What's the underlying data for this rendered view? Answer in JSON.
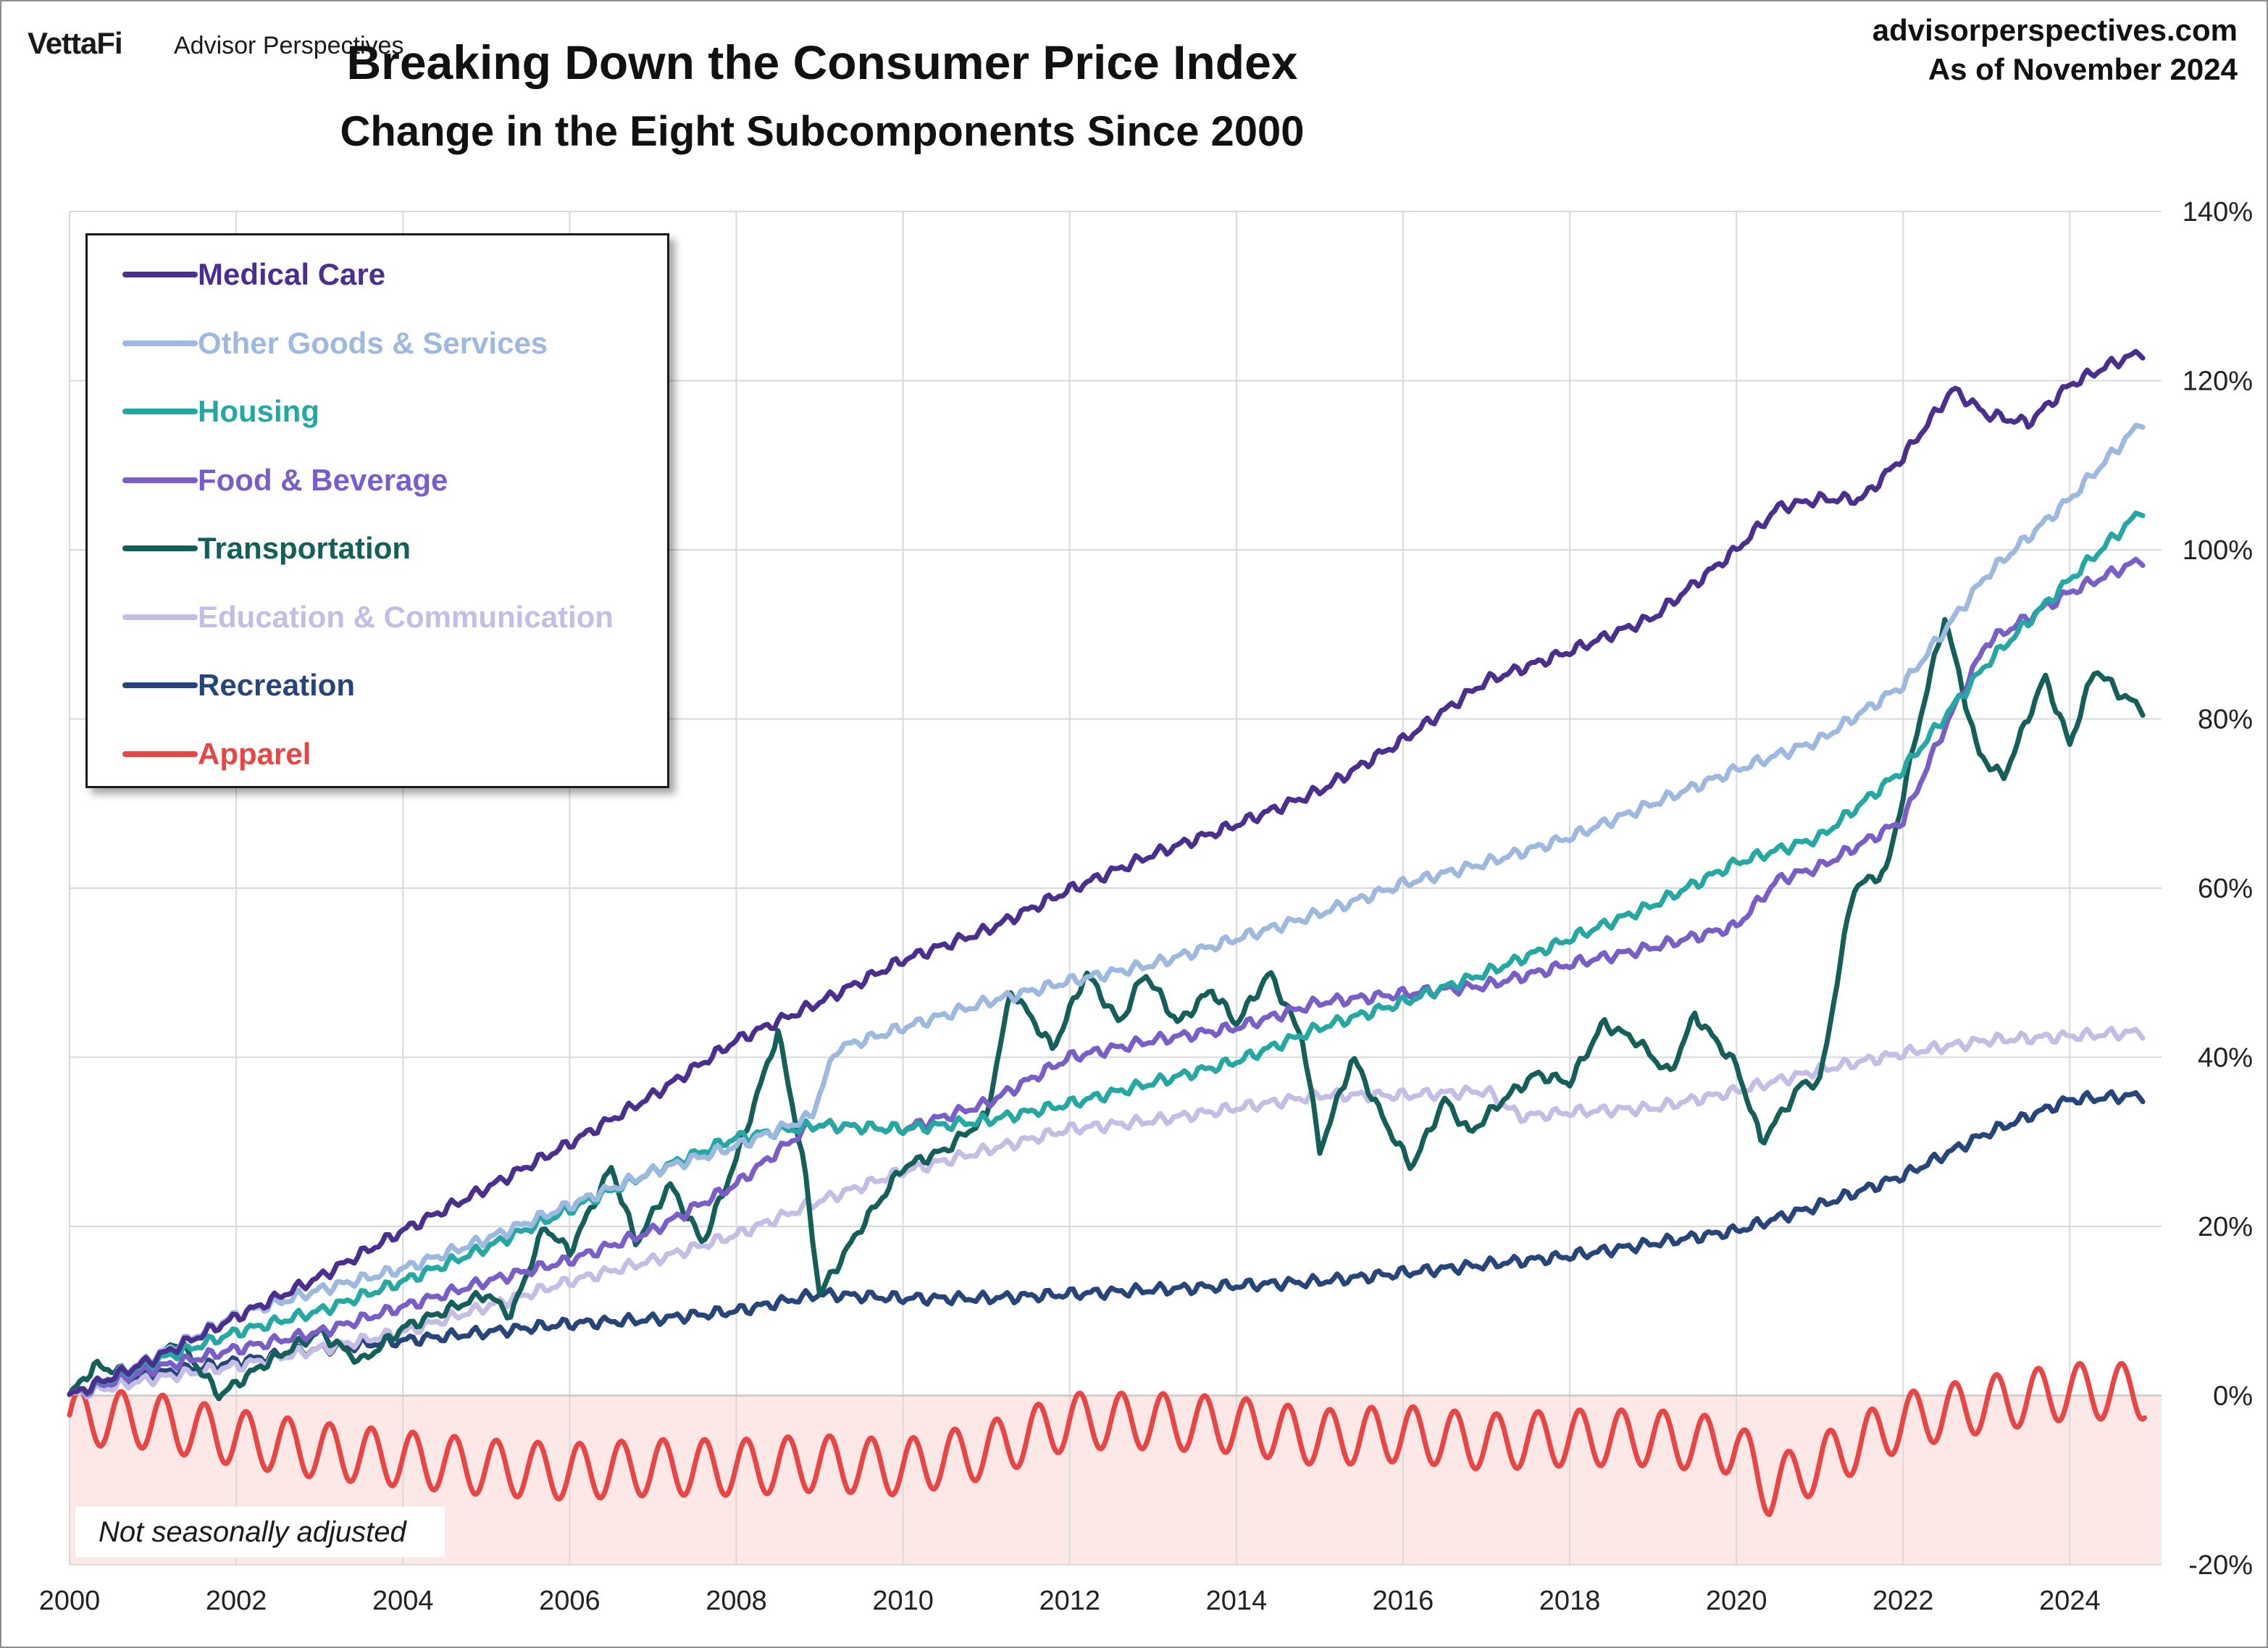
{
  "header": {
    "brand_logo": "VettaFi",
    "brand_name": "Advisor Perspectives",
    "site": "advisorperspectives.com",
    "as_of": "As of November 2024"
  },
  "note": "Not seasonally adjusted",
  "chart_data": {
    "type": "line",
    "title": "Breaking Down the Consumer Price Index",
    "subtitle": "Change in the Eight Subcomponents Since 2000",
    "xlabel": "",
    "ylabel": "",
    "x_ticks": [
      "2000",
      "2002",
      "2004",
      "2006",
      "2008",
      "2010",
      "2012",
      "2014",
      "2016",
      "2018",
      "2020",
      "2022",
      "2024"
    ],
    "y_ticks": [
      "-20%",
      "0%",
      "20%",
      "40%",
      "60%",
      "80%",
      "100%",
      "120%",
      "140%"
    ],
    "xlim": [
      2000,
      2025.1
    ],
    "ylim": [
      -20,
      140
    ],
    "grid": true,
    "y_axis_side": "right",
    "negative_region_shaded": true,
    "negative_region_color": "#fde8e8",
    "legend_position": "top-left",
    "series": [
      {
        "name": "Medical Care",
        "color": "#4b2f8f",
        "points": [
          [
            2000,
            0
          ],
          [
            2001,
            4.3
          ],
          [
            2002,
            9.3
          ],
          [
            2003,
            14.0
          ],
          [
            2004,
            19.5
          ],
          [
            2005,
            24.5
          ],
          [
            2006,
            29.8
          ],
          [
            2007,
            35.5
          ],
          [
            2008,
            42.0
          ],
          [
            2009,
            46.5
          ],
          [
            2010,
            51.5
          ],
          [
            2011,
            55.0
          ],
          [
            2012,
            59.8
          ],
          [
            2013,
            64.0
          ],
          [
            2014,
            67.5
          ],
          [
            2015,
            71.5
          ],
          [
            2016,
            77.5
          ],
          [
            2017,
            84.5
          ],
          [
            2018,
            88.0
          ],
          [
            2019,
            92.0
          ],
          [
            2020,
            100.0
          ],
          [
            2020.5,
            105.0
          ],
          [
            2021,
            106.0
          ],
          [
            2021.5,
            106.0
          ],
          [
            2022,
            111.0
          ],
          [
            2022.6,
            119.0
          ],
          [
            2023,
            116.0
          ],
          [
            2023.5,
            115.0
          ],
          [
            2024,
            119.5
          ],
          [
            2024.5,
            122.0
          ],
          [
            2024.9,
            123.5
          ]
        ]
      },
      {
        "name": "Other Goods & Services",
        "color": "#9db9e0",
        "points": [
          [
            2000,
            0
          ],
          [
            2001,
            4.5
          ],
          [
            2002,
            9.5
          ],
          [
            2003,
            12.5
          ],
          [
            2004,
            15.0
          ],
          [
            2005,
            18.5
          ],
          [
            2006,
            22.5
          ],
          [
            2007,
            26.5
          ],
          [
            2008,
            29.5
          ],
          [
            2008.9,
            33.0
          ],
          [
            2009.2,
            41.0
          ],
          [
            2010,
            43.5
          ],
          [
            2011,
            46.5
          ],
          [
            2012,
            49.0
          ],
          [
            2013,
            51.0
          ],
          [
            2014,
            54.0
          ],
          [
            2015,
            57.0
          ],
          [
            2016,
            60.5
          ],
          [
            2017,
            63.0
          ],
          [
            2018,
            66.0
          ],
          [
            2019,
            70.0
          ],
          [
            2020,
            74.0
          ],
          [
            2021,
            77.5
          ],
          [
            2022,
            84.0
          ],
          [
            2023,
            97.0
          ],
          [
            2024,
            106.0
          ],
          [
            2024.9,
            115.5
          ]
        ]
      },
      {
        "name": "Housing",
        "color": "#25a7a3",
        "points": [
          [
            2000,
            0
          ],
          [
            2001,
            4.0
          ],
          [
            2002,
            7.5
          ],
          [
            2003,
            10.0
          ],
          [
            2004,
            13.5
          ],
          [
            2005,
            17.5
          ],
          [
            2006,
            22.0
          ],
          [
            2007,
            26.5
          ],
          [
            2008,
            30.5
          ],
          [
            2009,
            32.0
          ],
          [
            2010,
            31.5
          ],
          [
            2011,
            32.5
          ],
          [
            2012,
            34.5
          ],
          [
            2013,
            37.0
          ],
          [
            2014,
            39.5
          ],
          [
            2015,
            43.5
          ],
          [
            2016,
            46.5
          ],
          [
            2017,
            50.0
          ],
          [
            2018,
            54.0
          ],
          [
            2019,
            58.0
          ],
          [
            2020,
            63.0
          ],
          [
            2021,
            66.0
          ],
          [
            2022,
            74.0
          ],
          [
            2023,
            86.5
          ],
          [
            2024,
            96.5
          ],
          [
            2024.9,
            105.0
          ]
        ]
      },
      {
        "name": "Food & Beverage",
        "color": "#7a5ec8",
        "points": [
          [
            2000,
            0
          ],
          [
            2001,
            3.2
          ],
          [
            2002,
            5.5
          ],
          [
            2003,
            7.5
          ],
          [
            2004,
            10.5
          ],
          [
            2005,
            13.5
          ],
          [
            2006,
            16.0
          ],
          [
            2007,
            19.5
          ],
          [
            2008,
            25.0
          ],
          [
            2008.9,
            32.0
          ],
          [
            2010,
            31.5
          ],
          [
            2011,
            34.5
          ],
          [
            2012,
            40.0
          ],
          [
            2013,
            42.0
          ],
          [
            2014,
            43.5
          ],
          [
            2015,
            46.5
          ],
          [
            2016,
            47.5
          ],
          [
            2017,
            48.5
          ],
          [
            2018,
            51.0
          ],
          [
            2019,
            53.0
          ],
          [
            2020,
            55.5
          ],
          [
            2020.5,
            61.0
          ],
          [
            2021,
            62.5
          ],
          [
            2022,
            68.0
          ],
          [
            2022.5,
            79.0
          ],
          [
            2023,
            89.0
          ],
          [
            2024,
            95.0
          ],
          [
            2024.9,
            99.0
          ]
        ]
      },
      {
        "name": "Transportation",
        "color": "#145f5a",
        "points": [
          [
            2000,
            0
          ],
          [
            2000.3,
            3.5
          ],
          [
            2000.8,
            2.5
          ],
          [
            2001.3,
            6.5
          ],
          [
            2001.8,
            0
          ],
          [
            2002.3,
            3.5
          ],
          [
            2003,
            7.5
          ],
          [
            2003.5,
            4.0
          ],
          [
            2004,
            8.0
          ],
          [
            2004.5,
            10.0
          ],
          [
            2005,
            12.0
          ],
          [
            2005.3,
            9.5
          ],
          [
            2005.7,
            20.0
          ],
          [
            2006,
            17.0
          ],
          [
            2006.5,
            27.0
          ],
          [
            2006.8,
            18.0
          ],
          [
            2007.2,
            25.0
          ],
          [
            2007.6,
            18.0
          ],
          [
            2008,
            28.0
          ],
          [
            2008.5,
            43.0
          ],
          [
            2008.8,
            28.0
          ],
          [
            2009,
            12.0
          ],
          [
            2009.5,
            20.0
          ],
          [
            2010,
            27.0
          ],
          [
            2010.5,
            29.0
          ],
          [
            2011,
            33.0
          ],
          [
            2011.3,
            48.0
          ],
          [
            2011.8,
            41.0
          ],
          [
            2012.2,
            50.0
          ],
          [
            2012.6,
            44.0
          ],
          [
            2012.9,
            50.0
          ],
          [
            2013.3,
            44.0
          ],
          [
            2013.7,
            48.0
          ],
          [
            2014,
            44.0
          ],
          [
            2014.4,
            50.0
          ],
          [
            2014.8,
            42.0
          ],
          [
            2015,
            29.0
          ],
          [
            2015.4,
            40.0
          ],
          [
            2015.8,
            32.0
          ],
          [
            2016.1,
            27.0
          ],
          [
            2016.5,
            35.0
          ],
          [
            2016.8,
            31.0
          ],
          [
            2017.2,
            35.0
          ],
          [
            2017.6,
            38.0
          ],
          [
            2018,
            37.0
          ],
          [
            2018.4,
            44.0
          ],
          [
            2018.8,
            42.0
          ],
          [
            2019.2,
            38.0
          ],
          [
            2019.5,
            45.0
          ],
          [
            2020,
            39.0
          ],
          [
            2020.3,
            30.0
          ],
          [
            2020.8,
            37.0
          ],
          [
            2021,
            37.0
          ],
          [
            2021.4,
            60.0
          ],
          [
            2021.8,
            62.0
          ],
          [
            2022.2,
            80.0
          ],
          [
            2022.5,
            92.0
          ],
          [
            2022.9,
            76.0
          ],
          [
            2023.2,
            73.0
          ],
          [
            2023.7,
            85.0
          ],
          [
            2024,
            77.0
          ],
          [
            2024.3,
            86.0
          ],
          [
            2024.6,
            83.0
          ],
          [
            2024.9,
            81.0
          ]
        ]
      },
      {
        "name": "Education & Communication",
        "color": "#c6bde6",
        "points": [
          [
            2000,
            0
          ],
          [
            2001,
            2.0
          ],
          [
            2002,
            3.5
          ],
          [
            2003,
            5.5
          ],
          [
            2004,
            7.5
          ],
          [
            2005,
            10.5
          ],
          [
            2006,
            13.5
          ],
          [
            2007,
            16.0
          ],
          [
            2008,
            19.0
          ],
          [
            2009,
            23.0
          ],
          [
            2010,
            26.5
          ],
          [
            2011,
            29.0
          ],
          [
            2012,
            31.5
          ],
          [
            2013,
            32.5
          ],
          [
            2014,
            34.0
          ],
          [
            2015,
            35.5
          ],
          [
            2016,
            35.5
          ],
          [
            2017,
            36.0
          ],
          [
            2017.4,
            33.0
          ],
          [
            2018,
            33.5
          ],
          [
            2019,
            34.0
          ],
          [
            2020,
            36.0
          ],
          [
            2021,
            38.5
          ],
          [
            2022,
            40.5
          ],
          [
            2023,
            42.0
          ],
          [
            2024,
            42.5
          ],
          [
            2024.9,
            43.0
          ]
        ]
      },
      {
        "name": "Recreation",
        "color": "#26457a",
        "points": [
          [
            2000,
            0
          ],
          [
            2001,
            2.5
          ],
          [
            2002,
            4.0
          ],
          [
            2003,
            5.5
          ],
          [
            2004,
            6.5
          ],
          [
            2005,
            7.5
          ],
          [
            2006,
            8.5
          ],
          [
            2007,
            9.0
          ],
          [
            2008,
            10.0
          ],
          [
            2009,
            12.0
          ],
          [
            2010,
            11.5
          ],
          [
            2011,
            11.5
          ],
          [
            2012,
            12.0
          ],
          [
            2013,
            12.5
          ],
          [
            2014,
            13.0
          ],
          [
            2015,
            13.5
          ],
          [
            2016,
            14.5
          ],
          [
            2017,
            15.5
          ],
          [
            2018,
            16.5
          ],
          [
            2019,
            18.0
          ],
          [
            2020,
            19.5
          ],
          [
            2021,
            22.5
          ],
          [
            2022,
            26.0
          ],
          [
            2023,
            31.0
          ],
          [
            2024,
            35.0
          ],
          [
            2024.9,
            35.5
          ]
        ]
      },
      {
        "name": "Apparel",
        "color": "#e84545",
        "points": [
          [
            2000,
            -2.5
          ],
          [
            2001,
            -3.0
          ],
          [
            2002,
            -5.0
          ],
          [
            2003,
            -6.5
          ],
          [
            2004,
            -7.5
          ],
          [
            2005,
            -8.5
          ],
          [
            2006,
            -9.0
          ],
          [
            2007,
            -8.5
          ],
          [
            2008,
            -8.5
          ],
          [
            2009,
            -8.0
          ],
          [
            2010,
            -8.5
          ],
          [
            2011,
            -6.5
          ],
          [
            2012,
            -3.0
          ],
          [
            2013,
            -3.0
          ],
          [
            2014,
            -3.5
          ],
          [
            2015,
            -5.0
          ],
          [
            2016,
            -4.5
          ],
          [
            2017,
            -5.5
          ],
          [
            2018,
            -5.0
          ],
          [
            2019,
            -5.0
          ],
          [
            2020,
            -6.0
          ],
          [
            2020.4,
            -11.0
          ],
          [
            2021,
            -8.0
          ],
          [
            2022,
            -3.0
          ],
          [
            2023,
            -1.0
          ],
          [
            2024,
            0.5
          ],
          [
            2024.9,
            0.5
          ]
        ],
        "seasonal_amplitude": 3.3
      }
    ]
  }
}
